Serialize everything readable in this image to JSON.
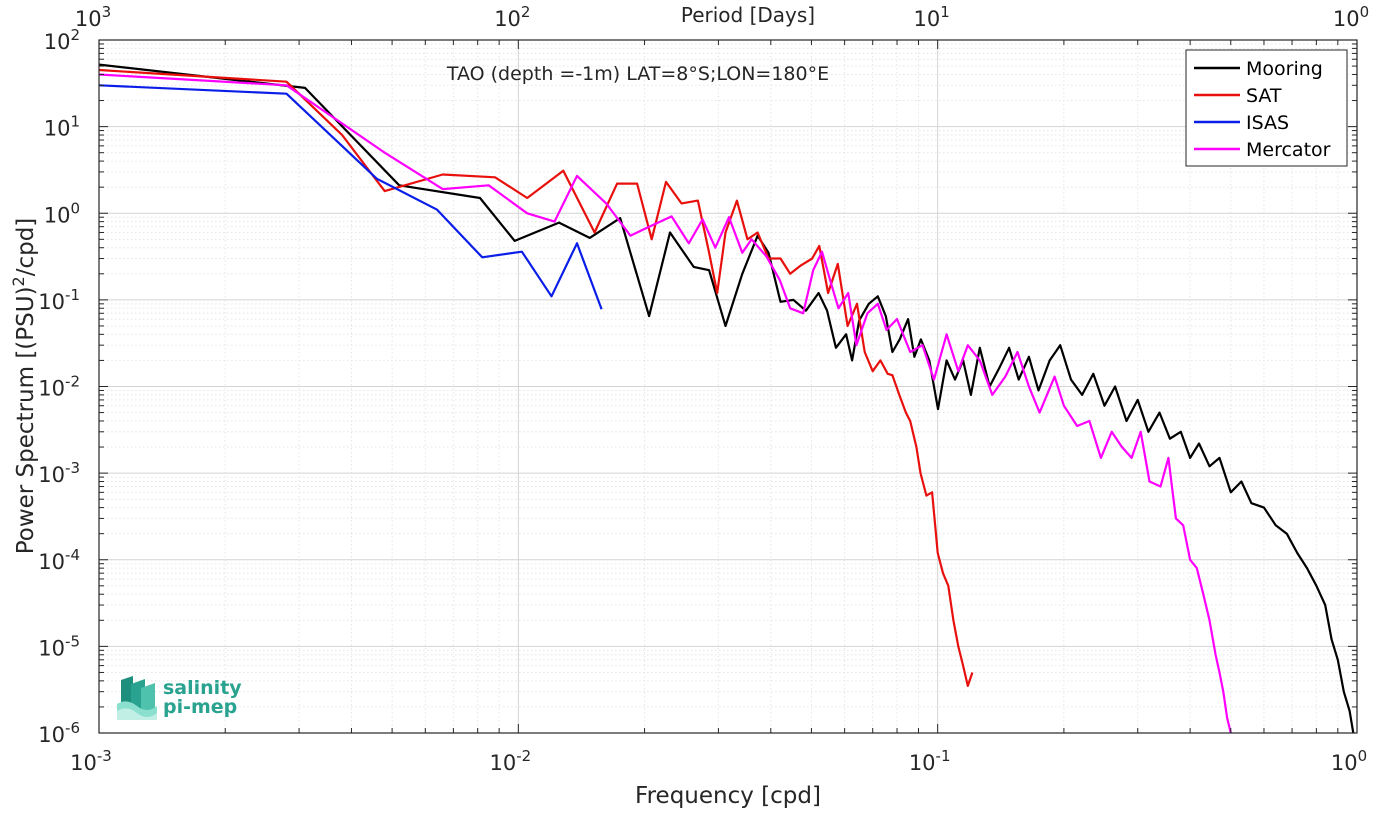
{
  "chart_data": {
    "type": "line",
    "xscale": "log",
    "yscale": "log",
    "xlabel": "Frequency [cpd]",
    "ylabel": "Power Spectrum [(PSU)^2/cpd]",
    "xlim": [
      0.001,
      1
    ],
    "ylim": [
      1e-06,
      100
    ],
    "grid": true,
    "legend_position": "top-right",
    "title": "",
    "annotation": "TAO (depth =-1m) LAT=8°S;LON=180°E",
    "top_axis": {
      "label": "Period [Days]",
      "ticks": [
        {
          "base": "10",
          "exp": "3"
        },
        {
          "base": "10",
          "exp": "2"
        },
        {
          "base": "10",
          "exp": "1"
        },
        {
          "base": "10",
          "exp": "0"
        }
      ]
    },
    "x_ticks": [
      {
        "base": "10",
        "exp": "-3"
      },
      {
        "base": "10",
        "exp": "-2"
      },
      {
        "base": "10",
        "exp": "-1"
      },
      {
        "base": "10",
        "exp": "0"
      }
    ],
    "y_ticks": [
      {
        "base": "10",
        "exp": "2"
      },
      {
        "base": "10",
        "exp": "1"
      },
      {
        "base": "10",
        "exp": "0"
      },
      {
        "base": "10",
        "exp": "-1"
      },
      {
        "base": "10",
        "exp": "-2"
      },
      {
        "base": "10",
        "exp": "-3"
      },
      {
        "base": "10",
        "exp": "-4"
      },
      {
        "base": "10",
        "exp": "-5"
      },
      {
        "base": "10",
        "exp": "-6"
      }
    ],
    "series": [
      {
        "name": "Mooring",
        "color": "#000000",
        "points": [
          [
            0.001,
            52
          ],
          [
            0.0031,
            28
          ],
          [
            0.0052,
            2.1
          ],
          [
            0.0081,
            1.5
          ],
          [
            0.0098,
            0.48
          ],
          [
            0.0125,
            0.78
          ],
          [
            0.0148,
            0.52
          ],
          [
            0.0175,
            0.88
          ],
          [
            0.0205,
            0.065
          ],
          [
            0.023,
            0.6
          ],
          [
            0.0262,
            0.24
          ],
          [
            0.0285,
            0.22
          ],
          [
            0.0312,
            0.05
          ],
          [
            0.0342,
            0.2
          ],
          [
            0.0372,
            0.55
          ],
          [
            0.0395,
            0.35
          ],
          [
            0.0422,
            0.095
          ],
          [
            0.0453,
            0.1
          ],
          [
            0.0485,
            0.075
          ],
          [
            0.052,
            0.12
          ],
          [
            0.0545,
            0.075
          ],
          [
            0.0572,
            0.028
          ],
          [
            0.0605,
            0.04
          ],
          [
            0.0625,
            0.02
          ],
          [
            0.065,
            0.058
          ],
          [
            0.0685,
            0.09
          ],
          [
            0.072,
            0.11
          ],
          [
            0.0752,
            0.065
          ],
          [
            0.078,
            0.025
          ],
          [
            0.0812,
            0.035
          ],
          [
            0.085,
            0.06
          ],
          [
            0.088,
            0.022
          ],
          [
            0.0912,
            0.035
          ],
          [
            0.0955,
            0.02
          ],
          [
            0.1002,
            0.0055
          ],
          [
            0.105,
            0.02
          ],
          [
            0.11,
            0.012
          ],
          [
            0.115,
            0.02
          ],
          [
            0.12,
            0.008
          ],
          [
            0.126,
            0.028
          ],
          [
            0.133,
            0.01
          ],
          [
            0.14,
            0.016
          ],
          [
            0.148,
            0.028
          ],
          [
            0.156,
            0.012
          ],
          [
            0.165,
            0.022
          ],
          [
            0.174,
            0.009
          ],
          [
            0.185,
            0.02
          ],
          [
            0.196,
            0.03
          ],
          [
            0.208,
            0.012
          ],
          [
            0.221,
            0.008
          ],
          [
            0.235,
            0.014
          ],
          [
            0.25,
            0.006
          ],
          [
            0.265,
            0.01
          ],
          [
            0.282,
            0.004
          ],
          [
            0.3,
            0.007
          ],
          [
            0.318,
            0.003
          ],
          [
            0.338,
            0.005
          ],
          [
            0.358,
            0.0025
          ],
          [
            0.38,
            0.003
          ],
          [
            0.4,
            0.0015
          ],
          [
            0.42,
            0.0022
          ],
          [
            0.445,
            0.0012
          ],
          [
            0.47,
            0.0015
          ],
          [
            0.5,
            0.0006
          ],
          [
            0.53,
            0.0008
          ],
          [
            0.56,
            0.00045
          ],
          [
            0.6,
            0.0004
          ],
          [
            0.64,
            0.00025
          ],
          [
            0.68,
            0.0002
          ],
          [
            0.72,
            0.00012
          ],
          [
            0.76,
            8e-05
          ],
          [
            0.8,
            5e-05
          ],
          [
            0.84,
            3e-05
          ],
          [
            0.87,
            1.2e-05
          ],
          [
            0.9,
            7e-06
          ],
          [
            0.93,
            3e-06
          ],
          [
            0.96,
            1.8e-06
          ],
          [
            0.98,
            1e-06
          ]
        ]
      },
      {
        "name": "SAT",
        "color": "#e8100c",
        "points": [
          [
            0.001,
            45
          ],
          [
            0.0028,
            33
          ],
          [
            0.0038,
            8
          ],
          [
            0.0048,
            1.8
          ],
          [
            0.0066,
            2.8
          ],
          [
            0.0088,
            2.6
          ],
          [
            0.0105,
            1.5
          ],
          [
            0.0128,
            3.1
          ],
          [
            0.0152,
            0.6
          ],
          [
            0.0172,
            2.2
          ],
          [
            0.0192,
            2.2
          ],
          [
            0.0208,
            0.5
          ],
          [
            0.0225,
            2.3
          ],
          [
            0.0245,
            1.3
          ],
          [
            0.0268,
            1.4
          ],
          [
            0.0285,
            0.35
          ],
          [
            0.0298,
            0.12
          ],
          [
            0.0312,
            0.6
          ],
          [
            0.0332,
            1.4
          ],
          [
            0.0352,
            0.5
          ],
          [
            0.0372,
            0.6
          ],
          [
            0.0395,
            0.3
          ],
          [
            0.0422,
            0.3
          ],
          [
            0.0445,
            0.2
          ],
          [
            0.0472,
            0.25
          ],
          [
            0.0502,
            0.3
          ],
          [
            0.0522,
            0.42
          ],
          [
            0.0548,
            0.12
          ],
          [
            0.0578,
            0.26
          ],
          [
            0.061,
            0.05
          ],
          [
            0.0642,
            0.09
          ],
          [
            0.067,
            0.025
          ],
          [
            0.07,
            0.015
          ],
          [
            0.073,
            0.02
          ],
          [
            0.076,
            0.014
          ],
          [
            0.078,
            0.0135
          ],
          [
            0.081,
            0.008
          ],
          [
            0.084,
            0.005
          ],
          [
            0.086,
            0.004
          ],
          [
            0.089,
            0.002
          ],
          [
            0.091,
            0.001
          ],
          [
            0.094,
            0.00055
          ],
          [
            0.097,
            0.0006
          ],
          [
            0.1,
            0.00012
          ],
          [
            0.103,
            7e-05
          ],
          [
            0.106,
            5e-05
          ],
          [
            0.109,
            2e-05
          ],
          [
            0.112,
            1e-05
          ],
          [
            0.115,
            6e-06
          ],
          [
            0.118,
            3.5e-06
          ],
          [
            0.121,
            5e-06
          ]
        ]
      },
      {
        "name": "ISAS",
        "color": "#0b1ee8",
        "points": [
          [
            0.001,
            30
          ],
          [
            0.0028,
            24
          ],
          [
            0.0046,
            2.5
          ],
          [
            0.0064,
            1.1
          ],
          [
            0.0082,
            0.31
          ],
          [
            0.0102,
            0.36
          ],
          [
            0.012,
            0.11
          ],
          [
            0.0138,
            0.45
          ],
          [
            0.0158,
            0.078
          ]
        ]
      },
      {
        "name": "Mercator",
        "color": "#ff00ff",
        "points": [
          [
            0.001,
            40
          ],
          [
            0.0028,
            30
          ],
          [
            0.0048,
            5
          ],
          [
            0.0066,
            1.9
          ],
          [
            0.0085,
            2.1
          ],
          [
            0.0105,
            1.0
          ],
          [
            0.0122,
            0.8
          ],
          [
            0.0138,
            2.7
          ],
          [
            0.0162,
            1.3
          ],
          [
            0.0185,
            0.55
          ],
          [
            0.0205,
            0.7
          ],
          [
            0.0232,
            0.92
          ],
          [
            0.0255,
            0.45
          ],
          [
            0.0275,
            0.85
          ],
          [
            0.0295,
            0.4
          ],
          [
            0.0318,
            0.9
          ],
          [
            0.0342,
            0.35
          ],
          [
            0.036,
            0.5
          ],
          [
            0.039,
            0.32
          ],
          [
            0.042,
            0.17
          ],
          [
            0.0445,
            0.08
          ],
          [
            0.0478,
            0.07
          ],
          [
            0.0505,
            0.22
          ],
          [
            0.053,
            0.36
          ],
          [
            0.0558,
            0.15
          ],
          [
            0.058,
            0.08
          ],
          [
            0.0612,
            0.12
          ],
          [
            0.064,
            0.03
          ],
          [
            0.068,
            0.07
          ],
          [
            0.072,
            0.09
          ],
          [
            0.0755,
            0.045
          ],
          [
            0.08,
            0.06
          ],
          [
            0.086,
            0.025
          ],
          [
            0.092,
            0.03
          ],
          [
            0.098,
            0.012
          ],
          [
            0.105,
            0.04
          ],
          [
            0.112,
            0.015
          ],
          [
            0.118,
            0.03
          ],
          [
            0.126,
            0.02
          ],
          [
            0.135,
            0.008
          ],
          [
            0.145,
            0.013
          ],
          [
            0.155,
            0.025
          ],
          [
            0.165,
            0.01
          ],
          [
            0.175,
            0.005
          ],
          [
            0.19,
            0.013
          ],
          [
            0.2,
            0.006
          ],
          [
            0.215,
            0.0035
          ],
          [
            0.23,
            0.004
          ],
          [
            0.245,
            0.0015
          ],
          [
            0.26,
            0.003
          ],
          [
            0.275,
            0.002
          ],
          [
            0.29,
            0.0015
          ],
          [
            0.305,
            0.003
          ],
          [
            0.32,
            0.0008
          ],
          [
            0.34,
            0.0007
          ],
          [
            0.355,
            0.0015
          ],
          [
            0.37,
            0.0003
          ],
          [
            0.385,
            0.00025
          ],
          [
            0.4,
            0.0001
          ],
          [
            0.415,
            8e-05
          ],
          [
            0.43,
            4e-05
          ],
          [
            0.445,
            2e-05
          ],
          [
            0.46,
            8e-06
          ],
          [
            0.47,
            5e-06
          ],
          [
            0.48,
            3e-06
          ],
          [
            0.49,
            1.5e-06
          ],
          [
            0.5,
            1e-06
          ]
        ]
      }
    ]
  },
  "logo": {
    "line1": "salinity",
    "line2": "pi-mep",
    "color": "#29a38f"
  }
}
